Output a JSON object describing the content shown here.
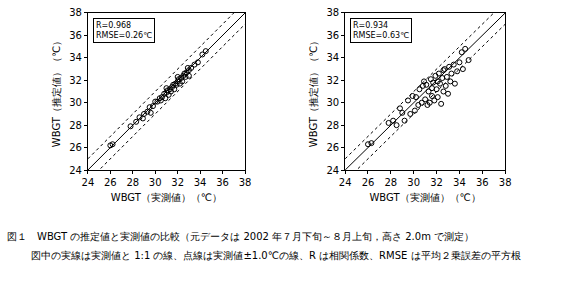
{
  "chart_data": [
    {
      "type": "scatter",
      "x_label": "WBGT（実測値）（℃）",
      "y_label": "WBGT（推定値）（℃）",
      "annotation": [
        "R=0.968",
        "RMSE=0.26℃"
      ],
      "color": "#000000",
      "marker": "open circle",
      "grid": false,
      "xlim": [
        24,
        38
      ],
      "ylim": [
        24,
        38
      ],
      "xticks": [
        24,
        26,
        28,
        30,
        32,
        34,
        36,
        38
      ],
      "yticks": [
        24,
        26,
        28,
        30,
        32,
        34,
        36,
        38
      ],
      "reference_lines": [
        {
          "offset": 0,
          "line_style": "solid"
        },
        {
          "offset": 1.0,
          "line_style": "dotted"
        },
        {
          "offset": -1.0,
          "line_style": "dotted"
        }
      ],
      "x": [
        26,
        26.2,
        27.8,
        28.3,
        28.6,
        29,
        29.3,
        29.5,
        29.8,
        30,
        30.2,
        30.4,
        30.6,
        30.8,
        31,
        31.1,
        31.3,
        31.5,
        31.6,
        31.8,
        32,
        32.1,
        32.3,
        32.5,
        32.6,
        32.8,
        33,
        33.2,
        33.5,
        33.8,
        34.2,
        34.5,
        31.2,
        31.7,
        32.2,
        30.9,
        32.4,
        33,
        29.6,
        28.9,
        31.4,
        32.7,
        30.5,
        31.9,
        32.9,
        31.0,
        32
      ],
      "values": [
        26.2,
        26.3,
        27.9,
        28.3,
        28.7,
        29,
        29.2,
        29.6,
        29.7,
        30.1,
        30.1,
        30.4,
        30.5,
        30.8,
        30.9,
        31.1,
        31.2,
        31.4,
        31.6,
        31.7,
        31.9,
        32.1,
        32.2,
        32.4,
        32.6,
        32.7,
        32.9,
        33.1,
        33.4,
        33.6,
        34.3,
        34.6,
        30.7,
        31.2,
        31.7,
        30.4,
        31.9,
        32.4,
        29.1,
        28.6,
        31.0,
        32.3,
        30.2,
        31.6,
        33.1,
        31.3,
        32.3
      ]
    },
    {
      "type": "scatter",
      "x_label": "WBGT（実測値）（℃）",
      "y_label": "WBGT（推定値）（℃）",
      "annotation": [
        "R=0.934",
        "RMSE=0.63℃"
      ],
      "color": "#000000",
      "marker": "open circle",
      "grid": false,
      "xlim": [
        24,
        38
      ],
      "ylim": [
        24,
        38
      ],
      "xticks": [
        24,
        26,
        28,
        30,
        32,
        34,
        36,
        38
      ],
      "yticks": [
        24,
        26,
        28,
        30,
        32,
        34,
        36,
        38
      ],
      "reference_lines": [
        {
          "offset": 0,
          "line_style": "solid"
        },
        {
          "offset": 1.0,
          "line_style": "dotted"
        },
        {
          "offset": -1.0,
          "line_style": "dotted"
        }
      ],
      "x": [
        26,
        26.3,
        27.8,
        28.2,
        28.5,
        28.8,
        29,
        29.2,
        29.5,
        29.7,
        29.9,
        30.1,
        30.2,
        30.4,
        30.5,
        30.7,
        30.8,
        31,
        31.1,
        31.2,
        31.3,
        31.5,
        31.6,
        31.7,
        31.8,
        31.9,
        32,
        32.1,
        32.2,
        32.3,
        32.4,
        32.5,
        32.6,
        32.7,
        32.8,
        32.9,
        33,
        33.1,
        33.2,
        33.3,
        33.5,
        33.6,
        33.8,
        34,
        34.2,
        34.3,
        34.5,
        34.8,
        31.4,
        30.9,
        32.6,
        31.6,
        32.1
      ],
      "values": [
        26.3,
        26.4,
        28.2,
        28.4,
        28.0,
        29.5,
        29.1,
        28.4,
        30.2,
        29.0,
        30.6,
        29.3,
        30.5,
        29.8,
        31.2,
        30.0,
        31.5,
        30.3,
        31.6,
        29.8,
        31.0,
        32.1,
        30.6,
        31.8,
        30.2,
        32.4,
        31.2,
        30.5,
        32.6,
        31.7,
        29.9,
        32.2,
        31.0,
        33.0,
        31.5,
        32.3,
        30.8,
        33.2,
        31.9,
        32.6,
        33.4,
        31.7,
        32.8,
        33.6,
        34.5,
        33.0,
        34.8,
        33.8,
        30.0,
        31.9,
        32.9,
        31.3,
        31.9
      ]
    }
  ],
  "caption": [
    "図１　WBGT の推定値と実測値の比較（元データは 2002 年７月下旬～８月上旬，高さ 2.0m で測定）",
    "図中の実線は実測値と 1:1 の線、点線は実測値±1.0℃の線、R は相関係数、RMSE は平均２乗誤差の平方根"
  ]
}
